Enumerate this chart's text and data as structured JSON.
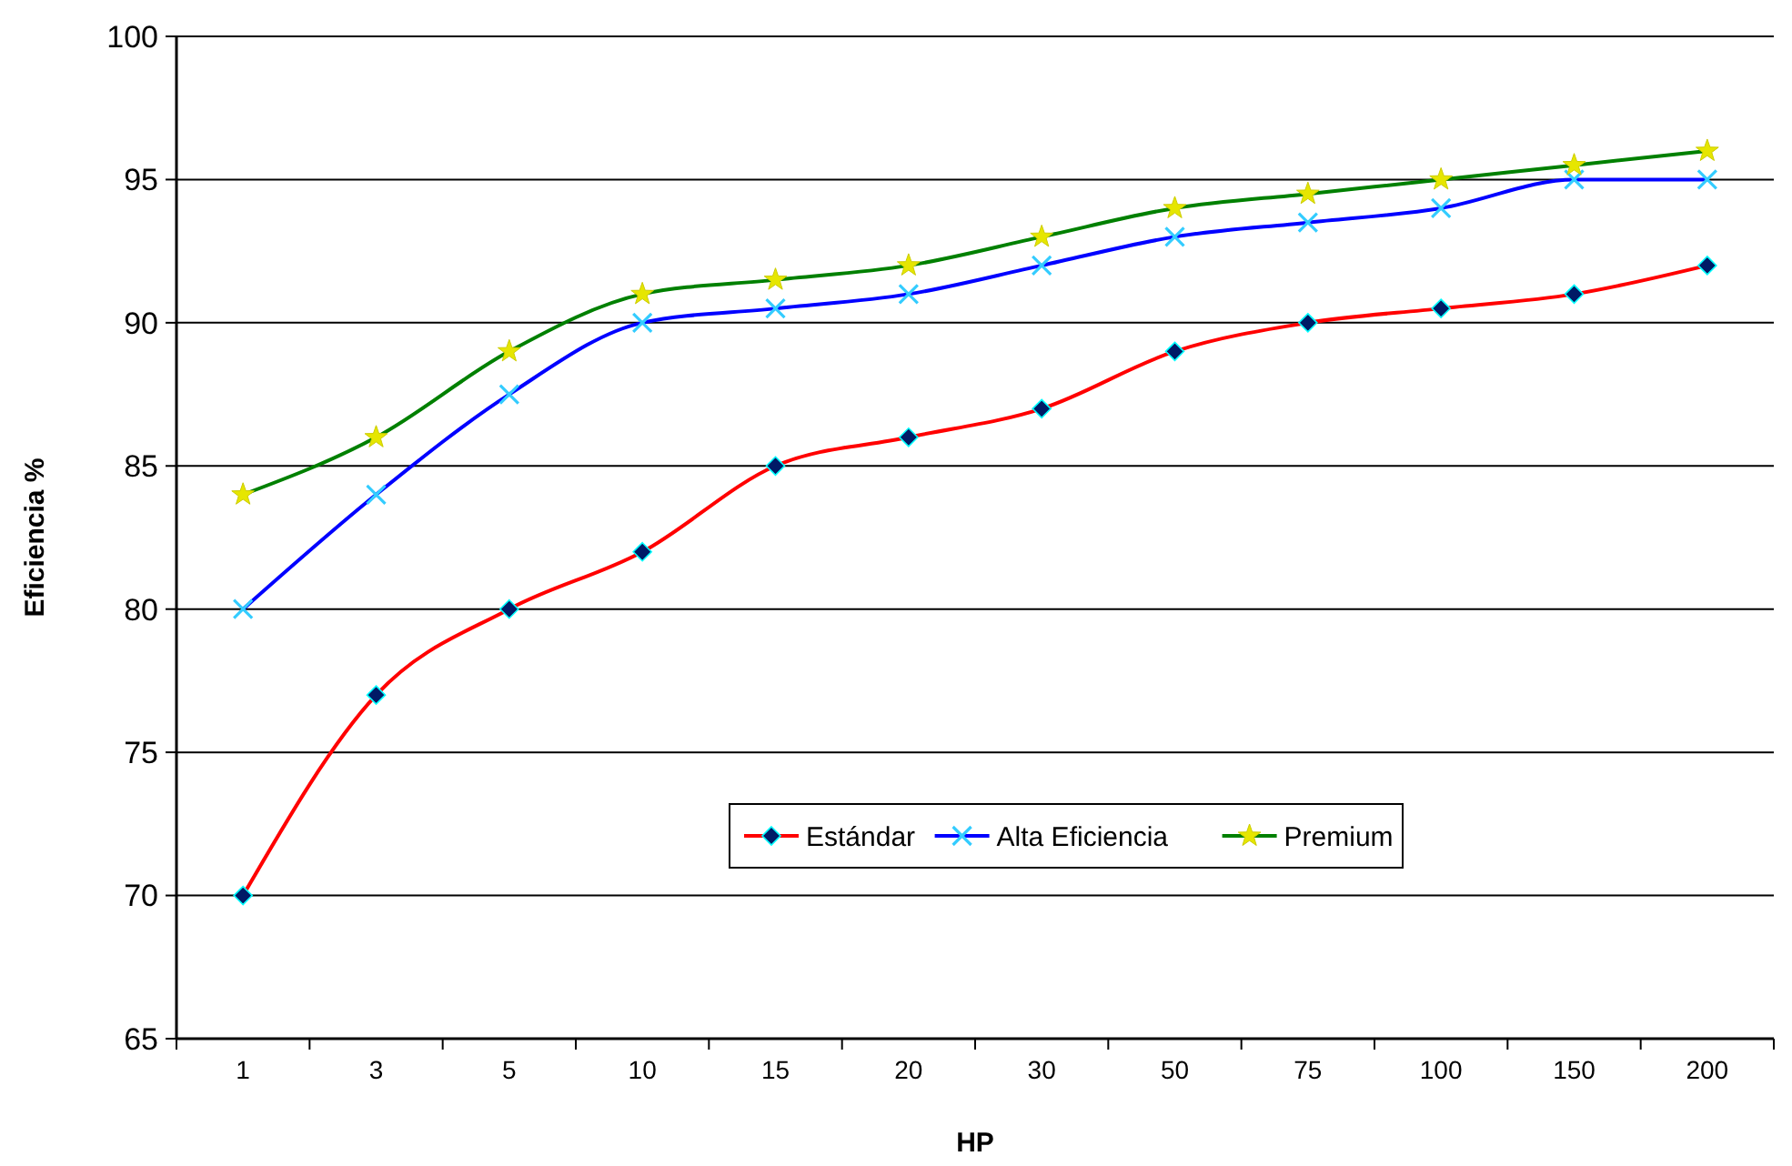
{
  "chart_data": {
    "type": "line",
    "xlabel": "HP",
    "ylabel": "Eficiencia %",
    "categories": [
      "1",
      "3",
      "5",
      "10",
      "15",
      "20",
      "30",
      "50",
      "75",
      "100",
      "150",
      "200"
    ],
    "series": [
      {
        "name": "Estándar",
        "color": "#ff0000",
        "marker": "diamond",
        "values": [
          70,
          77,
          80,
          82,
          85,
          86,
          87,
          89,
          90,
          90.5,
          91,
          92
        ]
      },
      {
        "name": "Alta Eficiencia",
        "color": "#0000ff",
        "marker": "cross",
        "values": [
          80,
          84,
          87.5,
          90,
          90.5,
          91,
          92,
          93,
          93.5,
          94,
          95,
          95
        ]
      },
      {
        "name": "Premium",
        "color": "#008000",
        "marker": "star",
        "values": [
          84,
          86,
          89,
          91,
          91.5,
          92,
          93,
          94,
          94.5,
          95,
          95.5,
          96
        ]
      }
    ],
    "ylim": [
      65,
      100
    ],
    "yticks": [
      65,
      70,
      75,
      80,
      85,
      90,
      95,
      100
    ],
    "grid": "y",
    "legend": "bottom",
    "line_style": "solid"
  }
}
